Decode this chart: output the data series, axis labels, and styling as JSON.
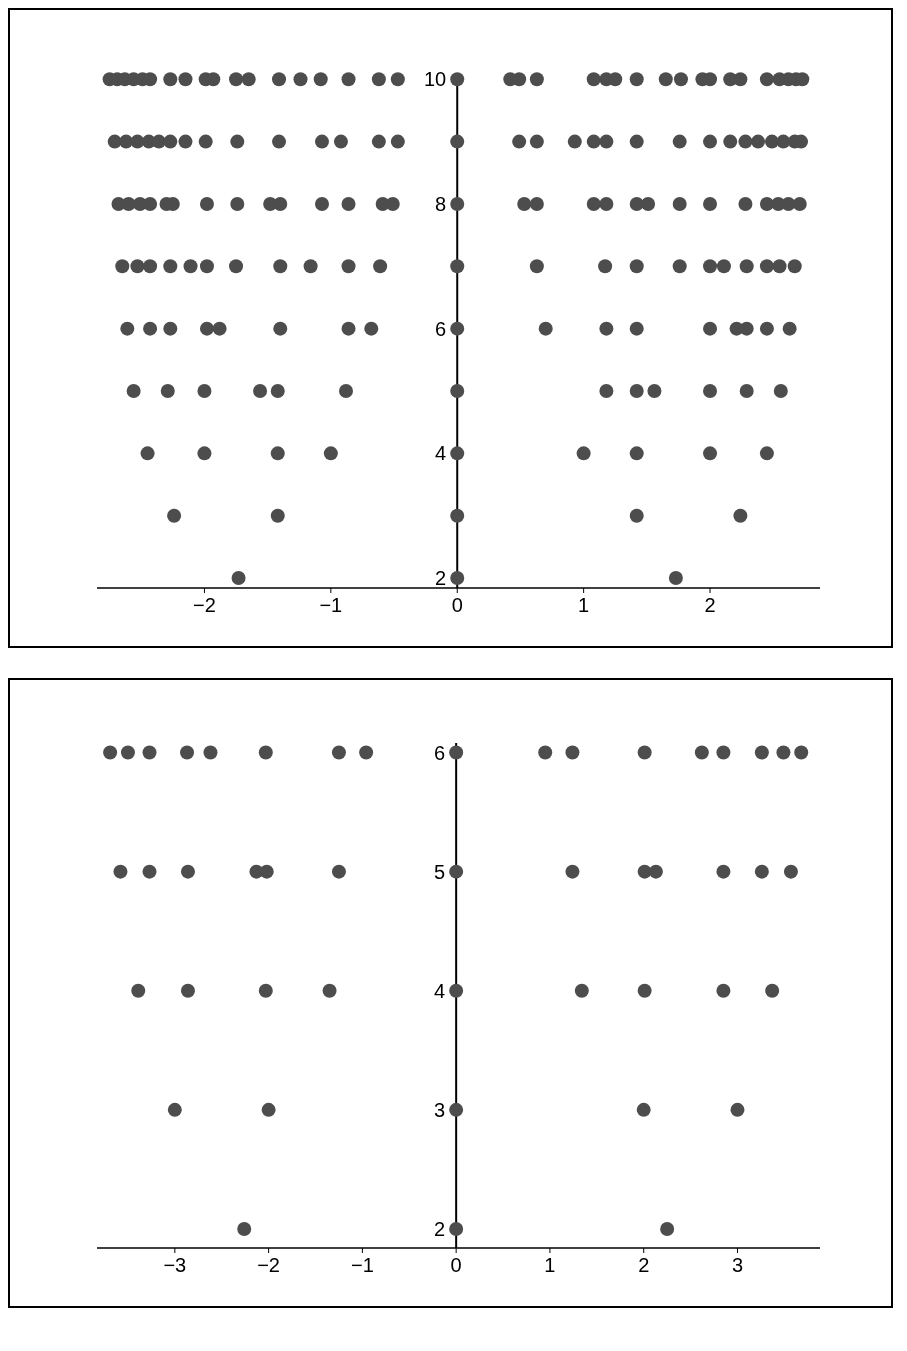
{
  "chart_data": [
    {
      "type": "scatter",
      "marker": "circle",
      "grid": false,
      "xlim": [
        -2.85,
        2.87
      ],
      "ylim": [
        1.84,
        10.1
      ],
      "xticks": [
        {
          "value": -2,
          "label": "−2"
        },
        {
          "value": -1,
          "label": "−1"
        },
        0,
        1,
        2
      ],
      "yticks": [
        2,
        4,
        6,
        8,
        10
      ],
      "series": [
        {
          "color": "#4d4d4d",
          "x": [
            -2.75,
            -2.69,
            -2.63,
            -2.56,
            -2.49,
            -2.43,
            -2.27,
            -2.15,
            -1.99,
            -1.93,
            -1.75,
            -1.65,
            -1.41,
            -1.24,
            -1.08,
            -0.86,
            -0.62,
            -0.47,
            0,
            0.42,
            0.49,
            0.63,
            1.08,
            1.18,
            1.25,
            1.42,
            1.65,
            1.77,
            1.94,
            2.0,
            2.16,
            2.24,
            2.45,
            2.55,
            2.62,
            2.68,
            2.73
          ],
          "values": [
            10,
            10,
            10,
            10,
            10,
            10,
            10,
            10,
            10,
            10,
            10,
            10,
            10,
            10,
            10,
            10,
            10,
            10,
            10,
            10,
            10,
            10,
            10,
            10,
            10,
            10,
            10,
            10,
            10,
            10,
            10,
            10,
            10,
            10,
            10,
            10,
            10
          ]
        },
        {
          "color": "#4d4d4d",
          "x": [
            -2.71,
            -2.62,
            -2.53,
            -2.44,
            -2.36,
            -2.27,
            -2.15,
            -1.99,
            -1.74,
            -1.41,
            -1.07,
            -0.92,
            -0.62,
            -0.47,
            0,
            0.49,
            0.63,
            0.93,
            1.08,
            1.18,
            1.42,
            1.76,
            2.0,
            2.16,
            2.28,
            2.38,
            2.49,
            2.58,
            2.67,
            2.72
          ],
          "values": [
            9,
            9,
            9,
            9,
            9,
            9,
            9,
            9,
            9,
            9,
            9,
            9,
            9,
            9,
            9,
            9,
            9,
            9,
            9,
            9,
            9,
            9,
            9,
            9,
            9,
            9,
            9,
            9,
            9,
            9
          ]
        },
        {
          "color": "#4d4d4d",
          "x": [
            -2.68,
            -2.6,
            -2.51,
            -2.43,
            -2.3,
            -2.25,
            -1.98,
            -1.74,
            -1.48,
            -1.4,
            -1.07,
            -0.86,
            -0.59,
            -0.51,
            0,
            0.53,
            0.63,
            1.08,
            1.18,
            1.42,
            1.51,
            1.76,
            2.0,
            2.28,
            2.45,
            2.54,
            2.62,
            2.71
          ],
          "values": [
            8,
            8,
            8,
            8,
            8,
            8,
            8,
            8,
            8,
            8,
            8,
            8,
            8,
            8,
            8,
            8,
            8,
            8,
            8,
            8,
            8,
            8,
            8,
            8,
            8,
            8,
            8,
            8
          ]
        },
        {
          "color": "#4d4d4d",
          "x": [
            -2.65,
            -2.53,
            -2.43,
            -2.27,
            -2.11,
            -1.98,
            -1.75,
            -1.4,
            -1.16,
            -0.86,
            -0.61,
            0,
            0.63,
            1.17,
            1.42,
            1.76,
            2.0,
            2.11,
            2.29,
            2.45,
            2.55,
            2.67
          ],
          "values": [
            7,
            7,
            7,
            7,
            7,
            7,
            7,
            7,
            7,
            7,
            7,
            7,
            7,
            7,
            7,
            7,
            7,
            7,
            7,
            7,
            7,
            7
          ]
        },
        {
          "color": "#4d4d4d",
          "x": [
            -2.61,
            -2.43,
            -2.27,
            -1.98,
            -1.88,
            -1.4,
            -0.86,
            -0.68,
            0,
            0.7,
            1.18,
            1.42,
            2.0,
            2.21,
            2.29,
            2.45,
            2.63
          ],
          "values": [
            6,
            6,
            6,
            6,
            6,
            6,
            6,
            6,
            6,
            6,
            6,
            6,
            6,
            6,
            6,
            6,
            6
          ]
        },
        {
          "color": "#4d4d4d",
          "x": [
            -2.56,
            -2.29,
            -2,
            -1.56,
            -1.42,
            -0.88,
            0,
            1.18,
            1.42,
            1.56,
            2,
            2.29,
            2.56
          ],
          "values": [
            5,
            5,
            5,
            5,
            5,
            5,
            5,
            5,
            5,
            5,
            5,
            5,
            5
          ]
        },
        {
          "color": "#4d4d4d",
          "x": [
            -2.45,
            -2,
            -1.42,
            -1,
            0,
            1,
            1.42,
            2,
            2.45
          ],
          "values": [
            4,
            4,
            4,
            4,
            4,
            4,
            4,
            4,
            4
          ]
        },
        {
          "color": "#4d4d4d",
          "x": [
            -2.24,
            -1.42,
            0,
            1.42,
            2.24
          ],
          "values": [
            3,
            3,
            3,
            3,
            3
          ]
        },
        {
          "color": "#4d4d4d",
          "x": [
            -1.73,
            0,
            1.73
          ],
          "values": [
            2,
            2,
            2
          ]
        }
      ]
    },
    {
      "type": "scatter",
      "marker": "circle",
      "grid": false,
      "xlim": [
        -3.83,
        3.88
      ],
      "ylim": [
        1.84,
        6.08
      ],
      "xticks": [
        {
          "value": -3,
          "label": "−3"
        },
        {
          "value": -2,
          "label": "−2"
        },
        {
          "value": -1,
          "label": "−1"
        },
        0,
        1,
        2,
        3
      ],
      "yticks": [
        2,
        3,
        4,
        5,
        6
      ],
      "series": [
        {
          "color": "#4d4d4d",
          "x": [
            -3.69,
            -3.5,
            -3.27,
            -2.87,
            -2.62,
            -2.03,
            -1.25,
            -0.96,
            0,
            0.95,
            1.24,
            2.01,
            2.62,
            2.85,
            3.26,
            3.49,
            3.68
          ],
          "values": [
            6,
            6,
            6,
            6,
            6,
            6,
            6,
            6,
            6,
            6,
            6,
            6,
            6,
            6,
            6,
            6,
            6
          ]
        },
        {
          "color": "#4d4d4d",
          "x": [
            -3.58,
            -3.27,
            -2.86,
            -2.13,
            -2.02,
            -1.25,
            0,
            1.24,
            2.01,
            2.13,
            2.85,
            3.26,
            3.57
          ],
          "values": [
            5,
            5,
            5,
            5,
            5,
            5,
            5,
            5,
            5,
            5,
            5,
            5,
            5
          ]
        },
        {
          "color": "#4d4d4d",
          "x": [
            -3.39,
            -2.86,
            -2.03,
            -1.35,
            0,
            1.34,
            2.01,
            2.85,
            3.37
          ],
          "values": [
            4,
            4,
            4,
            4,
            4,
            4,
            4,
            4,
            4
          ]
        },
        {
          "color": "#4d4d4d",
          "x": [
            -3,
            -2,
            0,
            2,
            3
          ],
          "values": [
            3,
            3,
            3,
            3,
            3
          ]
        },
        {
          "color": "#4d4d4d",
          "x": [
            -2.26,
            0,
            2.25
          ],
          "values": [
            2,
            2,
            2
          ]
        }
      ]
    }
  ]
}
